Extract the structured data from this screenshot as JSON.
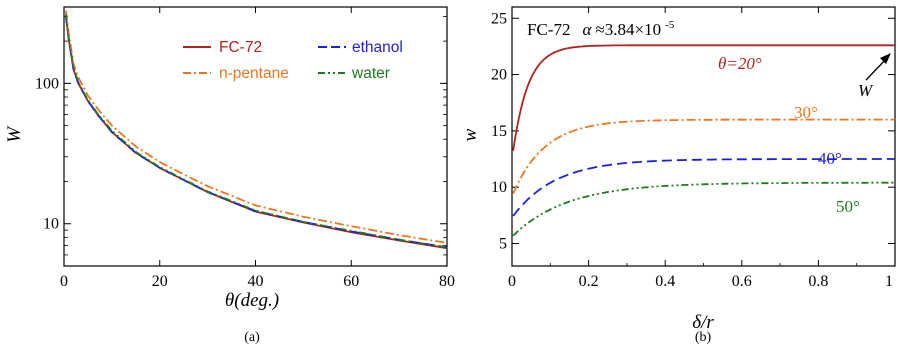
{
  "chart_data": [
    {
      "panel": "a",
      "type": "line",
      "caption": "(a)",
      "xlabel": "θ(deg.)",
      "ylabel": "W",
      "xlim": [
        0,
        80
      ],
      "ylim": [
        5,
        350
      ],
      "yscale": "log",
      "xticks": [
        0,
        20,
        40,
        60,
        80
      ],
      "yticks": [
        10,
        100
      ],
      "grid": false,
      "legend_position": "top-right",
      "series": [
        {
          "name": "FC-72",
          "color": "#b22222",
          "dash": "solid",
          "x": [
            0.4,
            1,
            2,
            3,
            5,
            7,
            10,
            15,
            20,
            25,
            30,
            40,
            50,
            60,
            70,
            80
          ],
          "y": [
            300,
            205,
            125,
            100,
            75,
            60,
            45,
            32,
            25,
            20.5,
            16.8,
            12.2,
            10.2,
            8.7,
            7.6,
            6.7
          ]
        },
        {
          "name": "ethanol",
          "color": "#1f1fd6",
          "dash": "long-dash",
          "x": [
            0.4,
            1,
            2,
            3,
            5,
            7,
            10,
            15,
            20,
            25,
            30,
            40,
            50,
            60,
            70,
            80
          ],
          "y": [
            300,
            205,
            125,
            100,
            75,
            60,
            45,
            32,
            25,
            20.5,
            16.8,
            12.3,
            10.3,
            8.8,
            7.7,
            6.8
          ]
        },
        {
          "name": "n-pentane",
          "color": "#e87722",
          "dash": "dash-dot",
          "x": [
            0.4,
            1,
            2,
            3,
            5,
            7,
            10,
            15,
            20,
            25,
            30,
            40,
            50,
            60,
            70,
            80
          ],
          "y": [
            330,
            225,
            137,
            110,
            82,
            66,
            50,
            35.5,
            27.5,
            22.5,
            18.5,
            13.5,
            11.2,
            9.6,
            8.3,
            7.3
          ]
        },
        {
          "name": "water",
          "color": "#1e7a1e",
          "dash": "dash-dot-dot",
          "x": [
            0.4,
            1,
            2,
            3,
            5,
            7,
            10,
            15,
            20,
            25,
            30,
            40,
            50,
            60,
            70,
            80
          ],
          "y": [
            310,
            210,
            128,
            102,
            76,
            61,
            46,
            32.5,
            25.3,
            20.7,
            17,
            12.4,
            10.3,
            8.9,
            7.7,
            6.8
          ]
        }
      ]
    },
    {
      "panel": "b",
      "type": "line",
      "caption": "(b)",
      "title": "FC-72",
      "title_alpha_symbol": "α",
      "title_alpha_value": "≈3.84×10",
      "title_alpha_exp": "-5",
      "xlabel": "δ/r",
      "ylabel": "w",
      "xlim": [
        0,
        1
      ],
      "ylim": [
        3,
        26
      ],
      "xticks": [
        0,
        0.2,
        0.4,
        0.6,
        0.8,
        1
      ],
      "xticklabels": [
        "0",
        "0.2",
        "0.4",
        "0.6",
        "0.8",
        "1"
      ],
      "yticks": [
        5,
        10,
        15,
        20,
        25
      ],
      "grid": false,
      "annotations": [
        {
          "text": "θ=20°",
          "color": "#b22222"
        },
        {
          "text": "30°",
          "color": "#e87722"
        },
        {
          "text": "40°",
          "color": "#1f1fd6"
        },
        {
          "text": "50°",
          "color": "#1e7a1e"
        },
        {
          "text": "W",
          "color": "#000000"
        }
      ],
      "series": [
        {
          "name": "θ=20°",
          "color": "#b22222",
          "dash": "solid",
          "plateau": 22.6,
          "start": 12.5,
          "rate": 25
        },
        {
          "name": "30°",
          "color": "#e87722",
          "dash": "dash-dot",
          "plateau": 16.0,
          "start": 9.2,
          "rate": 12
        },
        {
          "name": "40°",
          "color": "#1f1fd6",
          "dash": "long-dash",
          "plateau": 12.5,
          "start": 7.3,
          "rate": 9
        },
        {
          "name": "50°",
          "color": "#1e7a1e",
          "dash": "dash-dot-dot",
          "plateau": 10.4,
          "start": 5.6,
          "rate": 7
        }
      ]
    }
  ]
}
